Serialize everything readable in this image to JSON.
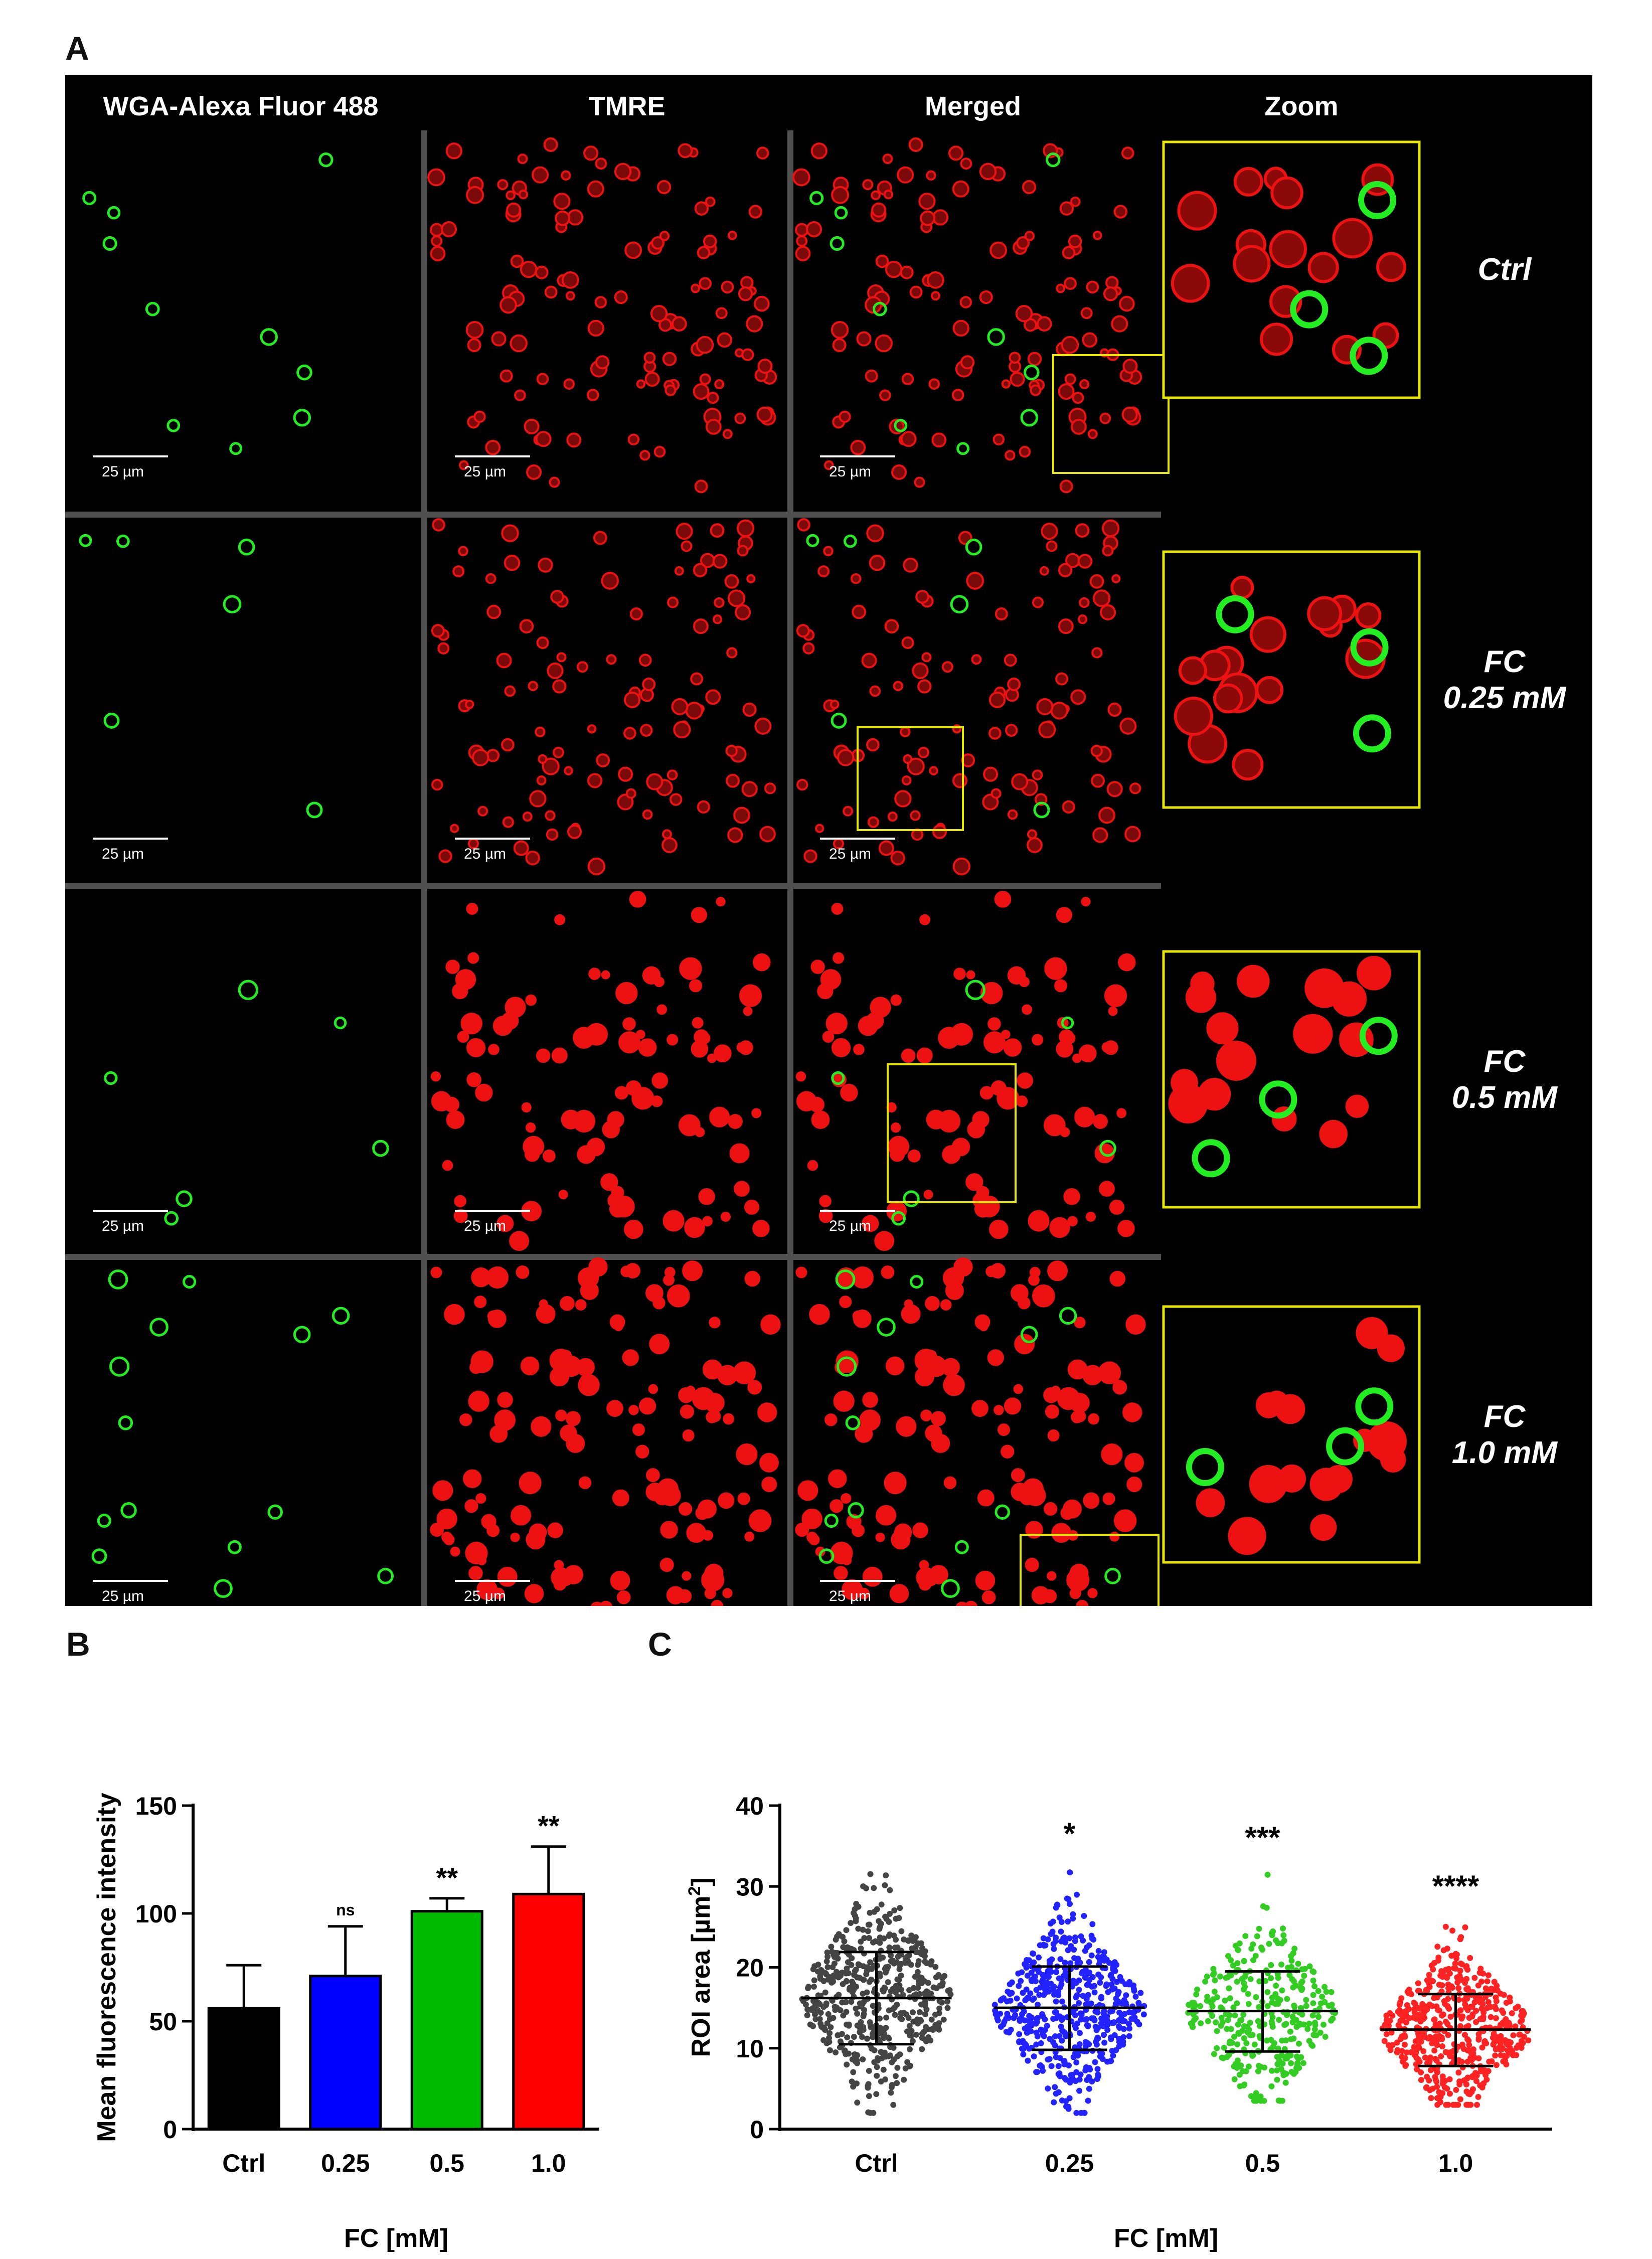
{
  "panelA": {
    "label": "A",
    "columns": [
      "WGA-Alexa Fluor 488",
      "TMRE",
      "Merged",
      "Zoom"
    ],
    "rows": [
      {
        "lines": [
          "Ctrl"
        ]
      },
      {
        "lines": [
          "FC",
          "0.25 mM"
        ]
      },
      {
        "lines": [
          "FC",
          "0.5 mM"
        ]
      },
      {
        "lines": [
          "FC",
          "1.0 mM"
        ]
      }
    ],
    "scale_bar_label": "25 µm",
    "colors": {
      "wga": "#22ee22",
      "tmre": "#ee1111",
      "zoom_box": "#e6e600",
      "separator": "#505050",
      "text": "#ffffff"
    }
  },
  "panelB": {
    "label": "B",
    "chart_data": {
      "type": "bar",
      "categories": [
        "Ctrl",
        "0.25",
        "0.5",
        "1.0"
      ],
      "values": [
        56,
        71,
        101,
        109
      ],
      "errors": [
        20,
        23,
        6,
        22
      ],
      "significance": [
        "",
        "ns",
        "**",
        "**"
      ],
      "colors": [
        "#000000",
        "#0000ff",
        "#00bb00",
        "#ff0000"
      ],
      "ylabel": "Mean fluorescence intensity",
      "xlabel": "FC [mM]",
      "ylim": [
        0,
        150
      ],
      "yticks": [
        0,
        50,
        100,
        150
      ],
      "grid": false
    }
  },
  "panelC": {
    "label": "C",
    "chart_data": {
      "type": "scatter",
      "categories": [
        "Ctrl",
        "0.25",
        "0.5",
        "1.0"
      ],
      "means": [
        16.2,
        15.0,
        14.6,
        12.3
      ],
      "sd_low": [
        10.5,
        9.8,
        9.6,
        7.8
      ],
      "sd_high": [
        21.9,
        20.1,
        19.5,
        16.7
      ],
      "max": [
        35,
        32.5,
        32,
        26
      ],
      "min": [
        2,
        2,
        3.5,
        3
      ],
      "significance": [
        "",
        "*",
        "***",
        "****"
      ],
      "colors": [
        "#444444",
        "#2222ff",
        "#33cc22",
        "#ff2222"
      ],
      "ylabel_html": "ROI area [µm<tspan baseline-shift=\"super\" font-size=\"34\">2</tspan>]",
      "ylabel": "ROI area [µm2]",
      "xlabel": "FC [mM]",
      "ylim": [
        0,
        40
      ],
      "yticks": [
        0,
        10,
        20,
        30,
        40
      ],
      "grid": false
    }
  }
}
